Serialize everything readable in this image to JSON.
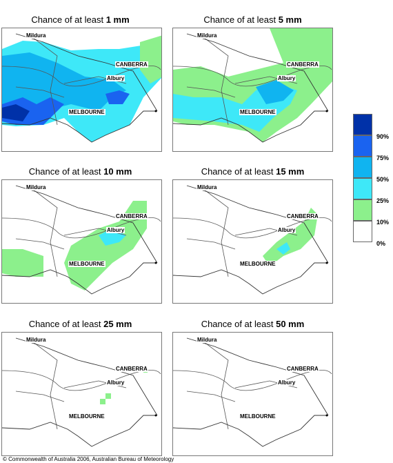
{
  "panels": [
    {
      "title_prefix": "Chance of at least ",
      "title_amount": "1 mm"
    },
    {
      "title_prefix": "Chance of at least ",
      "title_amount": "5 mm"
    },
    {
      "title_prefix": "Chance of at least ",
      "title_amount": "10 mm"
    },
    {
      "title_prefix": "Chance of at least ",
      "title_amount": "15 mm"
    },
    {
      "title_prefix": "Chance of at least ",
      "title_amount": "25 mm"
    },
    {
      "title_prefix": "Chance of at least ",
      "title_amount": "50 mm"
    }
  ],
  "cities": {
    "mildura": "Mildura",
    "canberra": "CANBERRA",
    "albury": "Albury",
    "melbourne": "MELBOURNE"
  },
  "legend": {
    "labels": [
      "90%",
      "75%",
      "50%",
      "25%",
      "10%",
      "0%"
    ],
    "colors": [
      "#0031a8",
      "#1a63f0",
      "#10b4f0",
      "#3ee8f8",
      "#8cf08c",
      "#ffffff"
    ]
  },
  "copyright": "© Commonwealth of Australia 2006, Australian Bureau of Meteorology"
}
